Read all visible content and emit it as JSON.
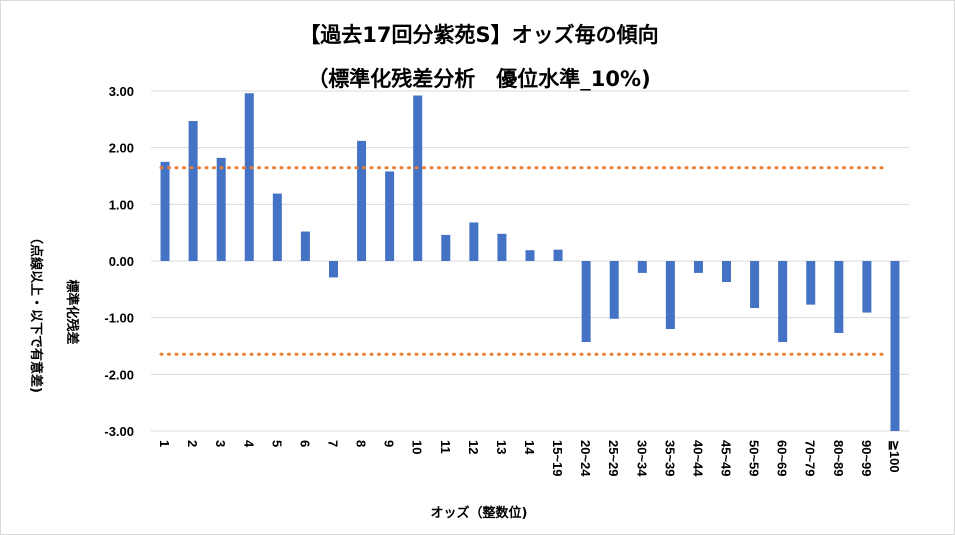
{
  "chart_data": {
    "type": "bar",
    "title": "【過去17回分紫苑S】オッズ毎の傾向",
    "subtitle": "（標準化残差分析　優位水準_10%)",
    "xlabel": "オッズ（整数位)",
    "ylabel_line1": "標準化残差",
    "ylabel_line2": "（点線以上・以下で有意差)",
    "ylim": [
      -3.0,
      3.0
    ],
    "yticks": [
      "3.00",
      "2.00",
      "1.00",
      "0.00",
      "-1.00",
      "-2.00",
      "-3.00"
    ],
    "grid": true,
    "categories": [
      "1",
      "2",
      "3",
      "4",
      "5",
      "6",
      "7",
      "8",
      "9",
      "10",
      "11",
      "12",
      "13",
      "14",
      "15~19",
      "20~24",
      "25~29",
      "30~34",
      "35~39",
      "40~44",
      "45~49",
      "50~59",
      "60~69",
      "70~79",
      "80~89",
      "90~99",
      "≧100"
    ],
    "values": [
      1.75,
      2.47,
      1.82,
      2.96,
      1.19,
      0.52,
      -0.29,
      2.12,
      1.58,
      2.92,
      0.46,
      0.68,
      0.48,
      0.19,
      0.2,
      -1.43,
      -1.02,
      -0.21,
      -1.2,
      -0.21,
      -0.37,
      -0.83,
      -1.43,
      -0.77,
      -1.27,
      -0.91,
      -3.0
    ],
    "threshold": 1.645,
    "bar_color": "#4472c4",
    "threshold_color": "#ed7d31"
  }
}
